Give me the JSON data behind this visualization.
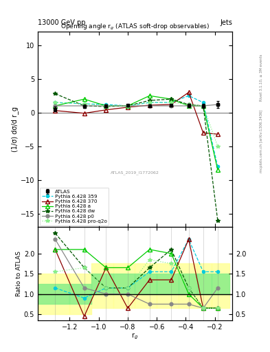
{
  "title": "Opening angle r$_g$ (ATLAS soft-drop observables)",
  "header_left": "13000 GeV pp",
  "header_right": "Jets",
  "ylabel_main": "(1/σ) dσ/d r_g",
  "ylabel_ratio": "Ratio to ATLAS",
  "xlabel": "r$_g$",
  "rivet_label": "Rivet 3.1.10, ≥ 3M events",
  "mcplots_label": "mcplots.cern.ch [arXiv:1306.3436]",
  "atlas_id": "ATLAS_2019_I1772062",
  "ylim_main": [
    -17,
    12
  ],
  "ylim_ratio": [
    0.35,
    2.65
  ],
  "yticks_main": [
    -15,
    -10,
    -5,
    0,
    5,
    10
  ],
  "yticks_ratio": [
    0.5,
    1.0,
    1.5,
    2.0
  ],
  "xlim": [
    -1.42,
    -0.08
  ],
  "xticks": [
    -1.2,
    -1.0,
    -0.8,
    -0.6,
    -0.4,
    -0.2
  ],
  "x_values": [
    -1.3,
    -1.1,
    -0.95,
    -0.8,
    -0.65,
    -0.5,
    -0.38,
    -0.28,
    -0.18
  ],
  "atlas_y": [
    0.5,
    0.9,
    1.0,
    1.05,
    1.0,
    1.05,
    1.05,
    1.0,
    1.2
  ],
  "atlas_yerr": [
    0.35,
    0.25,
    0.2,
    0.2,
    0.2,
    0.2,
    0.25,
    0.3,
    0.55
  ],
  "pythia_359_y": [
    1.5,
    1.3,
    1.2,
    1.0,
    1.5,
    1.5,
    2.5,
    1.5,
    -8.0
  ],
  "pythia_370_y": [
    0.3,
    -0.1,
    0.4,
    0.8,
    1.1,
    1.2,
    3.0,
    -3.0,
    -3.2
  ],
  "pythia_a_y": [
    1.0,
    2.0,
    1.0,
    1.0,
    2.5,
    2.0,
    1.0,
    1.0,
    -8.5
  ],
  "pythia_dw_y": [
    2.8,
    1.0,
    0.9,
    1.0,
    1.8,
    2.0,
    1.2,
    1.0,
    -16.0
  ],
  "pythia_p0_y": [
    1.0,
    1.0,
    1.0,
    1.0,
    1.0,
    1.0,
    1.0,
    1.0,
    1.2
  ],
  "pythia_proq2o_y": [
    1.5,
    1.3,
    1.0,
    1.0,
    1.5,
    1.5,
    1.2,
    1.0,
    -5.0
  ],
  "ratio_x": [
    -1.3,
    -1.1,
    -0.95,
    -0.8,
    -0.65,
    -0.5,
    -0.38,
    -0.28,
    -0.18
  ],
  "ratio_359": [
    1.15,
    0.9,
    1.15,
    1.15,
    1.55,
    1.55,
    2.35,
    1.55,
    1.55
  ],
  "ratio_370": [
    2.1,
    0.45,
    1.65,
    0.65,
    1.35,
    1.35,
    2.35,
    0.65,
    0.65
  ],
  "ratio_a": [
    2.1,
    2.1,
    1.65,
    1.65,
    2.1,
    2.0,
    1.0,
    0.65,
    0.65
  ],
  "ratio_dw": [
    2.5,
    1.65,
    1.15,
    1.15,
    1.65,
    2.1,
    1.15,
    0.65,
    0.65
  ],
  "ratio_p0": [
    2.35,
    1.15,
    1.0,
    1.0,
    0.75,
    0.75,
    0.75,
    0.65,
    1.15
  ],
  "ratio_proq2o": [
    1.55,
    1.65,
    1.15,
    1.15,
    1.85,
    1.75,
    1.15,
    0.65,
    0.65
  ],
  "band_edges": [
    -1.42,
    -1.2,
    -1.05,
    -0.9,
    -0.75,
    -0.6,
    -0.45,
    -0.32,
    -0.22,
    -0.1
  ],
  "green_y1": [
    0.75,
    0.75,
    1.0,
    1.0,
    1.0,
    1.0,
    1.0,
    1.0,
    1.0
  ],
  "green_y2": [
    1.25,
    1.25,
    1.5,
    1.5,
    1.5,
    1.5,
    1.5,
    1.5,
    1.5
  ],
  "yellow_y1": [
    0.5,
    0.5,
    0.65,
    0.65,
    0.65,
    0.65,
    0.65,
    0.65,
    0.65
  ],
  "yellow_y2": [
    1.5,
    1.5,
    1.75,
    1.75,
    1.75,
    1.75,
    1.75,
    1.75,
    1.75
  ],
  "color_359": "#00CCDD",
  "color_370": "#8B0000",
  "color_a": "#00CC00",
  "color_dw": "#005500",
  "color_p0": "#888888",
  "color_proq2o": "#88EE88",
  "color_atlas": "#000000",
  "color_green": "#88EE88",
  "color_yellow": "#FFFF99"
}
